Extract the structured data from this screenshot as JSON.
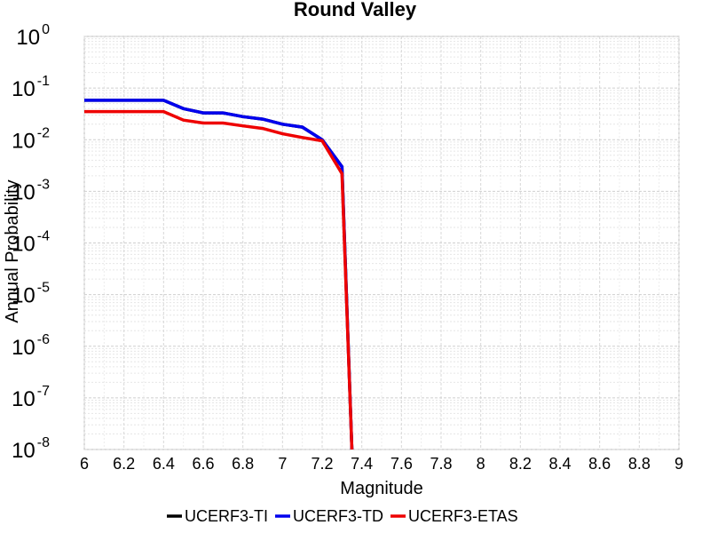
{
  "chart_data": {
    "type": "line",
    "title": "Round Valley",
    "xlabel": "Magnitude",
    "ylabel": "Annual Probability",
    "xlim": [
      6,
      9
    ],
    "ylim": [
      1e-08,
      1
    ],
    "yscale": "log",
    "grid": true,
    "legend_position": "bottom",
    "x_ticks": [
      "6",
      "6.2",
      "6.4",
      "6.6",
      "6.8",
      "7",
      "7.2",
      "7.4",
      "7.6",
      "7.8",
      "8",
      "8.2",
      "8.4",
      "8.6",
      "8.8",
      "9"
    ],
    "y_ticks": [
      {
        "base": "10",
        "exp": "-8"
      },
      {
        "base": "10",
        "exp": "-7"
      },
      {
        "base": "10",
        "exp": "-6"
      },
      {
        "base": "10",
        "exp": "-5"
      },
      {
        "base": "10",
        "exp": "-4"
      },
      {
        "base": "10",
        "exp": "-3"
      },
      {
        "base": "10",
        "exp": "-2"
      },
      {
        "base": "10",
        "exp": "-1"
      },
      {
        "base": "10",
        "exp": "0"
      }
    ],
    "series": [
      {
        "name": "UCERF3-TI",
        "color": "#000000",
        "x": [
          6.0,
          6.1,
          6.2,
          6.3,
          6.4,
          6.5,
          6.6,
          6.7,
          6.8,
          6.9,
          7.0,
          7.1,
          7.2,
          7.3,
          7.35
        ],
        "y": [
          0.058,
          0.058,
          0.058,
          0.058,
          0.058,
          0.04,
          0.033,
          0.033,
          0.028,
          0.025,
          0.02,
          0.0175,
          0.01,
          0.003,
          1e-08
        ]
      },
      {
        "name": "UCERF3-TD",
        "color": "#0000ee",
        "x": [
          6.0,
          6.1,
          6.2,
          6.3,
          6.4,
          6.5,
          6.6,
          6.7,
          6.8,
          6.9,
          7.0,
          7.1,
          7.2,
          7.3,
          7.35
        ],
        "y": [
          0.058,
          0.058,
          0.058,
          0.058,
          0.058,
          0.04,
          0.033,
          0.033,
          0.028,
          0.025,
          0.02,
          0.0175,
          0.01,
          0.003,
          1e-08
        ]
      },
      {
        "name": "UCERF3-ETAS",
        "color": "#ee0000",
        "x": [
          6.0,
          6.1,
          6.2,
          6.3,
          6.4,
          6.5,
          6.6,
          6.7,
          6.8,
          6.9,
          7.0,
          7.1,
          7.2,
          7.3,
          7.35
        ],
        "y": [
          0.035,
          0.035,
          0.035,
          0.035,
          0.035,
          0.024,
          0.021,
          0.021,
          0.0185,
          0.0165,
          0.013,
          0.011,
          0.0095,
          0.0022,
          1e-08
        ]
      }
    ]
  }
}
